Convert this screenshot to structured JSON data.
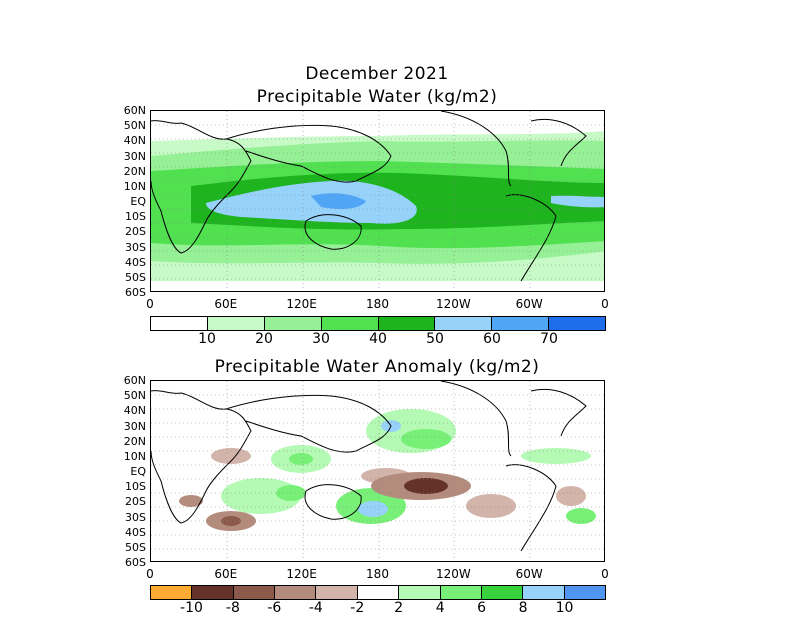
{
  "top": {
    "title_line1": "December 2021",
    "title_line2": "Precipitable Water (kg/m2)",
    "lat_labels": [
      "60N",
      "50N",
      "40N",
      "30N",
      "20N",
      "10N",
      "EQ",
      "10S",
      "20S",
      "30S",
      "40S",
      "50S",
      "60S"
    ],
    "lon_labels": [
      "0",
      "60E",
      "120E",
      "180",
      "120W",
      "60W",
      "0"
    ],
    "colorbar": {
      "labels": [
        "10",
        "20",
        "30",
        "40",
        "50",
        "60",
        "70"
      ],
      "colors": [
        "#ffffff",
        "#c8fac8",
        "#96f096",
        "#50e050",
        "#1eb41e",
        "#96d2fa",
        "#50a5f5",
        "#1e6eeb"
      ]
    }
  },
  "bottom": {
    "title": "Precipitable Water Anomaly (kg/m2)",
    "lat_labels": [
      "60N",
      "50N",
      "40N",
      "30N",
      "20N",
      "10N",
      "EQ",
      "10S",
      "20S",
      "30S",
      "40S",
      "50S",
      "60S"
    ],
    "lon_labels": [
      "0",
      "60E",
      "120E",
      "180",
      "120W",
      "60W",
      "0"
    ],
    "colorbar": {
      "labels": [
        "-10",
        "-8",
        "-6",
        "-4",
        "-2",
        "2",
        "4",
        "6",
        "8",
        "10"
      ],
      "colors": [
        "#ffaa32",
        "#643228",
        "#8c5a4b",
        "#b48c7d",
        "#d2b4aa",
        "#ffffff",
        "#b4fab4",
        "#78f078",
        "#37d23c",
        "#96d2fa",
        "#5096f0"
      ]
    }
  }
}
